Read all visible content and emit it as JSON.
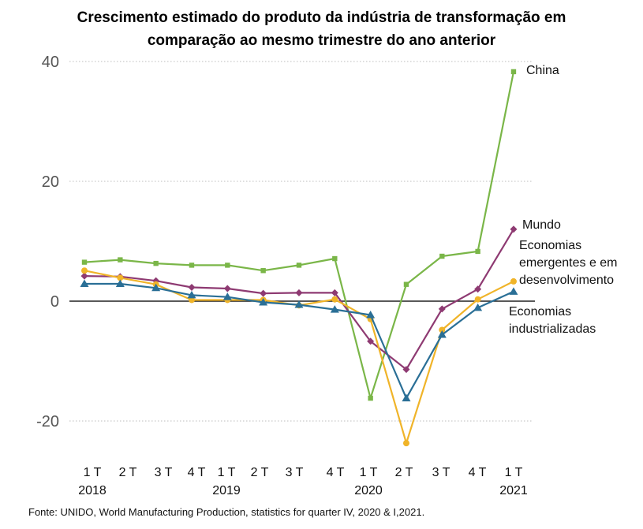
{
  "chart_data": {
    "type": "line",
    "title_line1": "Crescimento estimado do produto da indústria de transformação em",
    "title_line2": "comparação ao mesmo trimestre do ano anterior",
    "source": "Fonte: UNIDO, World Manufacturing Production, statistics for quarter IV, 2020 & I,2021.",
    "ylim": [
      -26,
      42
    ],
    "yticks": [
      40,
      20,
      0,
      -20
    ],
    "ytick_labels": [
      "40",
      "20",
      "0",
      "-20"
    ],
    "grid": true,
    "categories": [
      "1 T",
      "2 T",
      "3 T",
      "4 T",
      "1 T",
      "2 T",
      "3 T",
      "4 T",
      "1 T",
      "2 T",
      "3 T",
      "4 T",
      "1 T"
    ],
    "years": [
      {
        "label": "2018",
        "index": 0
      },
      {
        "label": "2019",
        "index": 4
      },
      {
        "label": "2020",
        "index": 8
      },
      {
        "label": "2021",
        "index": 12
      }
    ],
    "annotations": [
      {
        "series": "China",
        "lines": [
          "China"
        ]
      },
      {
        "series": "Mundo",
        "lines": [
          "Mundo"
        ]
      },
      {
        "series": "Economias emergentes e em desenvolvimento",
        "lines": [
          "Economias",
          "emergentes e em",
          "desenvolvimento"
        ]
      },
      {
        "series": "Economias industrializadas",
        "lines": [
          "Economias",
          "industrializadas"
        ]
      }
    ],
    "series": [
      {
        "name": "China",
        "color": "#7ab648",
        "marker": "square",
        "values": [
          6.5,
          6.9,
          6.3,
          6.0,
          6.0,
          5.1,
          6.0,
          7.1,
          -16.2,
          2.8,
          7.5,
          8.3,
          38.3
        ]
      },
      {
        "name": "Mundo",
        "color": "#8e3a72",
        "marker": "diamond",
        "values": [
          4.2,
          4.1,
          3.4,
          2.3,
          2.1,
          1.3,
          1.4,
          1.4,
          -6.7,
          -11.4,
          -1.3,
          2.0,
          12.0
        ]
      },
      {
        "name": "Economias emergentes e em desenvolvimento",
        "color": "#f0b429",
        "marker": "circle",
        "values": [
          5.1,
          3.9,
          2.8,
          0.2,
          0.2,
          0.2,
          -0.7,
          0.3,
          -3.0,
          -23.7,
          -4.8,
          0.3,
          3.3
        ]
      },
      {
        "name": "Economias industrializadas",
        "color": "#2a6f96",
        "marker": "triangle",
        "values": [
          2.9,
          2.9,
          2.2,
          1.0,
          0.7,
          -0.2,
          -0.6,
          -1.4,
          -2.3,
          -16.2,
          -5.6,
          -1.1,
          1.6
        ]
      }
    ]
  }
}
